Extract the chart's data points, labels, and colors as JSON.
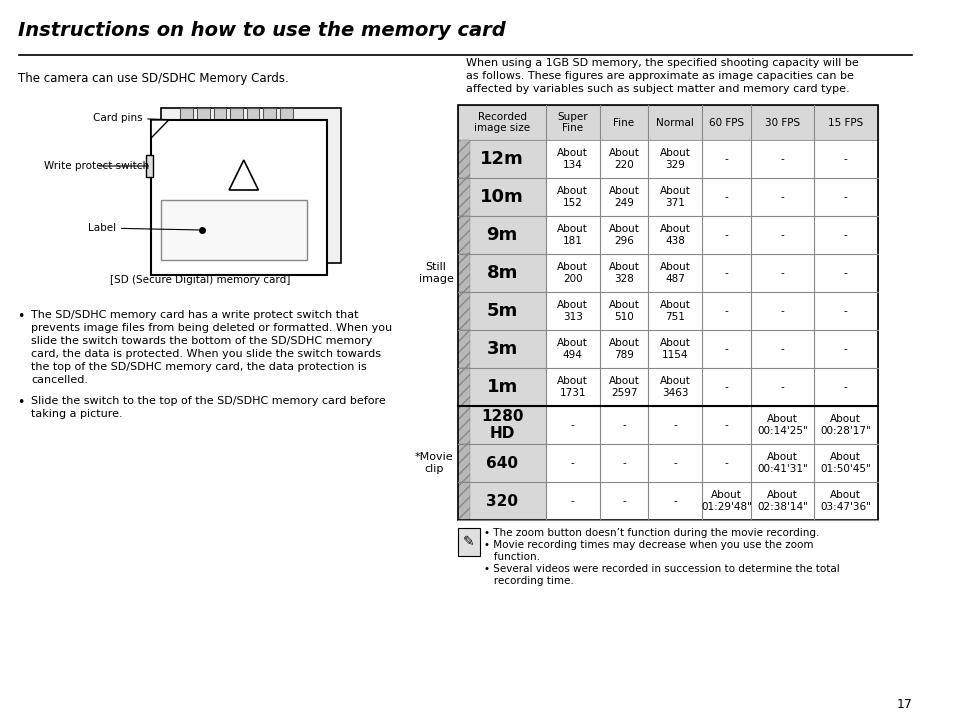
{
  "title": "Instructions on how to use the memory card",
  "bg_color": "#ffffff",
  "text_color": "#000000",
  "left_text1": "The camera can use SD/SDHC Memory Cards.",
  "left_caption": "[SD (Secure Digital) memory card]",
  "bullet1": "The SD/SDHC memory card has a write protect switch that prevents image files from being deleted or formatted. When you slide the switch towards the bottom of the SD/SDHC memory card, the data is protected. When you slide the switch towards the top of the SD/SDHC memory card, the data protection is cancelled.",
  "bullet2": "Slide the switch to the top of the SD/SDHC memory card before taking a picture.",
  "right_intro": "When using a 1GB SD memory, the specified shooting capacity will be as follows. These figures are approximate as image capacities can be affected by variables such as subject matter and memory card type.",
  "table_headers": [
    "Recorded\nimage size",
    "Super\nFine",
    "Fine",
    "Normal",
    "60 FPS",
    "30 FPS",
    "15 FPS"
  ],
  "still_label": "Still\nimage",
  "movie_label": "*Movie\nclip",
  "still_rows": [
    {
      "size": "12m",
      "sf": "About\n134",
      "fine": "About\n220",
      "normal": "About\n329",
      "fps60": "-",
      "fps30": "-",
      "fps15": "-"
    },
    {
      "size": "10m",
      "sf": "About\n152",
      "fine": "About\n249",
      "normal": "About\n371",
      "fps60": "-",
      "fps30": "-",
      "fps15": "-"
    },
    {
      "size": "9m",
      "sf": "About\n181",
      "fine": "About\n296",
      "normal": "About\n438",
      "fps60": "-",
      "fps30": "-",
      "fps15": "-"
    },
    {
      "size": "8m",
      "sf": "About\n200",
      "fine": "About\n328",
      "normal": "About\n487",
      "fps60": "-",
      "fps30": "-",
      "fps15": "-"
    },
    {
      "size": "5m",
      "sf": "About\n313",
      "fine": "About\n510",
      "normal": "About\n751",
      "fps60": "-",
      "fps30": "-",
      "fps15": "-"
    },
    {
      "size": "3m",
      "sf": "About\n494",
      "fine": "About\n789",
      "normal": "About\n1154",
      "fps60": "-",
      "fps30": "-",
      "fps15": "-"
    },
    {
      "size": "1m",
      "sf": "About\n1731",
      "fine": "About\n2597",
      "normal": "About\n3463",
      "fps60": "-",
      "fps30": "-",
      "fps15": "-"
    }
  ],
  "movie_rows": [
    {
      "size": "1280\nHD",
      "sf": "-",
      "fine": "-",
      "normal": "-",
      "fps60": "-",
      "fps30": "About\n00:14'25\"",
      "fps15": "About\n00:28'17\""
    },
    {
      "size": "640",
      "sf": "-",
      "fine": "-",
      "normal": "-",
      "fps60": "-",
      "fps30": "About\n00:41'31\"",
      "fps15": "About\n01:50'45\""
    },
    {
      "size": "320",
      "sf": "-",
      "fine": "-",
      "normal": "-",
      "fps60": "About\n01:29'48\"",
      "fps30": "About\n02:38'14\"",
      "fps15": "About\n03:47'36\""
    }
  ],
  "note1": "• The zoom button doesn’t function during the movie recording.",
  "note2": "• Movie recording times may decrease when you use the zoom\n   function.",
  "note3": "• Several videos were recorded in succession to determine the total\n   recording time.",
  "page_number": "17",
  "header_bg": "#d8d8d8",
  "still_bg": "#e8e8e8",
  "movie_bg": "#e8e8e8",
  "cell_bg": "#ffffff",
  "border_color": "#888888",
  "size_col_bg": "#d8d8d8"
}
